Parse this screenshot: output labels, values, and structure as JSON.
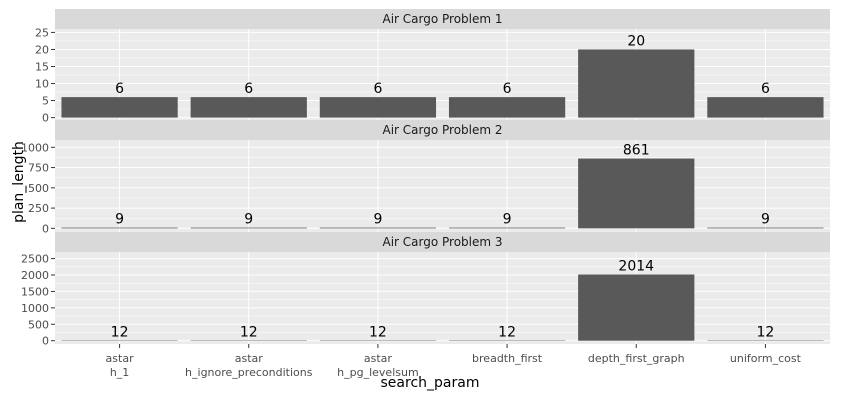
{
  "chart_data": {
    "type": "bar",
    "facet_layout": "stacked-rows",
    "xlabel": "search_param",
    "ylabel": "plan_length",
    "categories": [
      [
        "astar",
        "h_1"
      ],
      [
        "astar",
        "h_ignore_preconditions"
      ],
      [
        "astar",
        "h_pg_levelsum"
      ],
      [
        "breadth_first"
      ],
      [
        "depth_first_graph"
      ],
      [
        "uniform_cost"
      ]
    ],
    "colors": {
      "panel": "#ebebeb",
      "strip": "#d9d9d9",
      "bar": "#595959",
      "grid": "#ffffff"
    },
    "panels": [
      {
        "title": "Air Cargo Problem 1",
        "values": [
          6,
          6,
          6,
          6,
          20,
          6
        ],
        "ylim": [
          -1,
          26
        ],
        "yticks": [
          0,
          5,
          10,
          15,
          20,
          25
        ]
      },
      {
        "title": "Air Cargo Problem 2",
        "values": [
          9,
          9,
          9,
          9,
          861,
          9
        ],
        "ylim": [
          -45,
          1090
        ],
        "yticks": [
          0,
          250,
          500,
          750,
          1000
        ]
      },
      {
        "title": "Air Cargo Problem 3",
        "values": [
          12,
          12,
          12,
          12,
          2014,
          12
        ],
        "ylim": [
          -100,
          2700
        ],
        "yticks": [
          0,
          500,
          1000,
          1500,
          2000,
          2500
        ]
      }
    ]
  }
}
